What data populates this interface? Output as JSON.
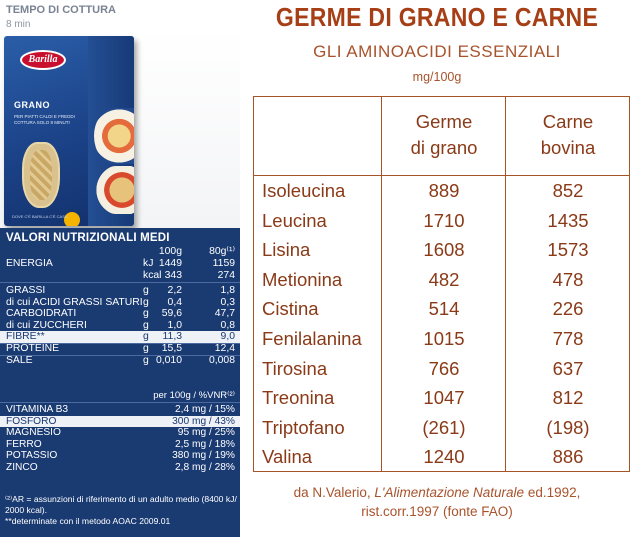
{
  "cooking": {
    "label": "TEMPO DI COTTURA",
    "time": "8 min"
  },
  "package": {
    "brand": "Barilla",
    "product": "GRANO",
    "tagline": "PER PIATTI CALDI E FREDDI",
    "cooking_note": "COTTURA SOLO 8 MINUTI",
    "footer": "DOVE C'È BARILLA C'È CASA"
  },
  "nutrition": {
    "title": "VALORI NUTRIZIONALI MEDI",
    "headers": {
      "per100": "100g",
      "per80": "80g⁽¹⁾"
    },
    "rows": [
      {
        "name": "ENERGIA",
        "unit": "kJ",
        "v100": "1449",
        "v80": "1159",
        "highlight": false
      },
      {
        "name": "",
        "unit": "kcal",
        "v100": "343",
        "v80": "274",
        "highlight": false
      },
      {
        "name": "GRASSI",
        "unit": "g",
        "v100": "2,2",
        "v80": "1,8",
        "highlight": false
      },
      {
        "name": "di cui ACIDI GRASSI SATURI",
        "unit": "g",
        "v100": "0,4",
        "v80": "0,3",
        "highlight": false
      },
      {
        "name": "CARBOIDRATI",
        "unit": "g",
        "v100": "59,6",
        "v80": "47,7",
        "highlight": false
      },
      {
        "name": "di cui ZUCCHERI",
        "unit": "g",
        "v100": "1,0",
        "v80": "0,8",
        "highlight": false
      },
      {
        "name": "FIBRE**",
        "unit": "g",
        "v100": "11,3",
        "v80": "9,0",
        "highlight": true
      },
      {
        "name": "PROTEINE",
        "unit": "g",
        "v100": "15,5",
        "v80": "12,4",
        "highlight": false
      },
      {
        "name": "SALE",
        "unit": "g",
        "v100": "0,010",
        "v80": "0,008",
        "highlight": false
      }
    ],
    "vnr_label": "per 100g / %VNR⁽²⁾",
    "vitamins": [
      {
        "name": "VITAMINA B3",
        "value": "2,4 mg / 15%",
        "highlight": false
      },
      {
        "name": "FOSFORO",
        "value": "300 mg / 43%",
        "highlight": true
      },
      {
        "name": "MAGNESIO",
        "value": "95 mg / 25%",
        "highlight": false
      },
      {
        "name": "FERRO",
        "value": "2,5 mg / 18%",
        "highlight": false
      },
      {
        "name": "POTASSIO",
        "value": "380 mg / 19%",
        "highlight": false
      },
      {
        "name": "ZINCO",
        "value": "2,8 mg / 28%",
        "highlight": false
      }
    ],
    "footnote_1": "⁽²⁾AR = assunzioni di riferimento di un adulto medio (8400 kJ/ 2000 kcal).",
    "footnote_2": "**determinate con il metodo AOAC 2009.01"
  },
  "amino": {
    "title": "GERME DI GRANO E CARNE",
    "subtitle": "GLI AMINOACIDI ESSENZIALI",
    "unit": "mg/100g",
    "col1": [
      "Germe",
      "di grano"
    ],
    "col2": [
      "Carne",
      "bovina"
    ],
    "rows": [
      {
        "name": "Isoleucina",
        "germe": "889",
        "carne": "852"
      },
      {
        "name": "Leucina",
        "germe": "1710",
        "carne": "1435"
      },
      {
        "name": "Lisina",
        "germe": "1608",
        "carne": "1573"
      },
      {
        "name": "Metionina",
        "germe": "482",
        "carne": "478"
      },
      {
        "name": "Cistina",
        "germe": "514",
        "carne": "226"
      },
      {
        "name": "Fenilalanina",
        "germe": "1015",
        "carne": "778"
      },
      {
        "name": "Tirosina",
        "germe": "766",
        "carne": "637"
      },
      {
        "name": "Treonina",
        "germe": "1047",
        "carne": "812"
      },
      {
        "name": "Triptofano",
        "germe": "(261)",
        "carne": "(198)"
      },
      {
        "name": "Valina",
        "germe": "1240",
        "carne": "886"
      }
    ],
    "source_prefix": "da N.Valerio, ",
    "source_book": "L'Alimentazione Naturale",
    "source_suffix": " ed.1992,",
    "source_line2": "rist.corr.1997 (fonte FAO)"
  },
  "colors": {
    "navy": "#1a3a72",
    "brown": "#a63e16"
  }
}
